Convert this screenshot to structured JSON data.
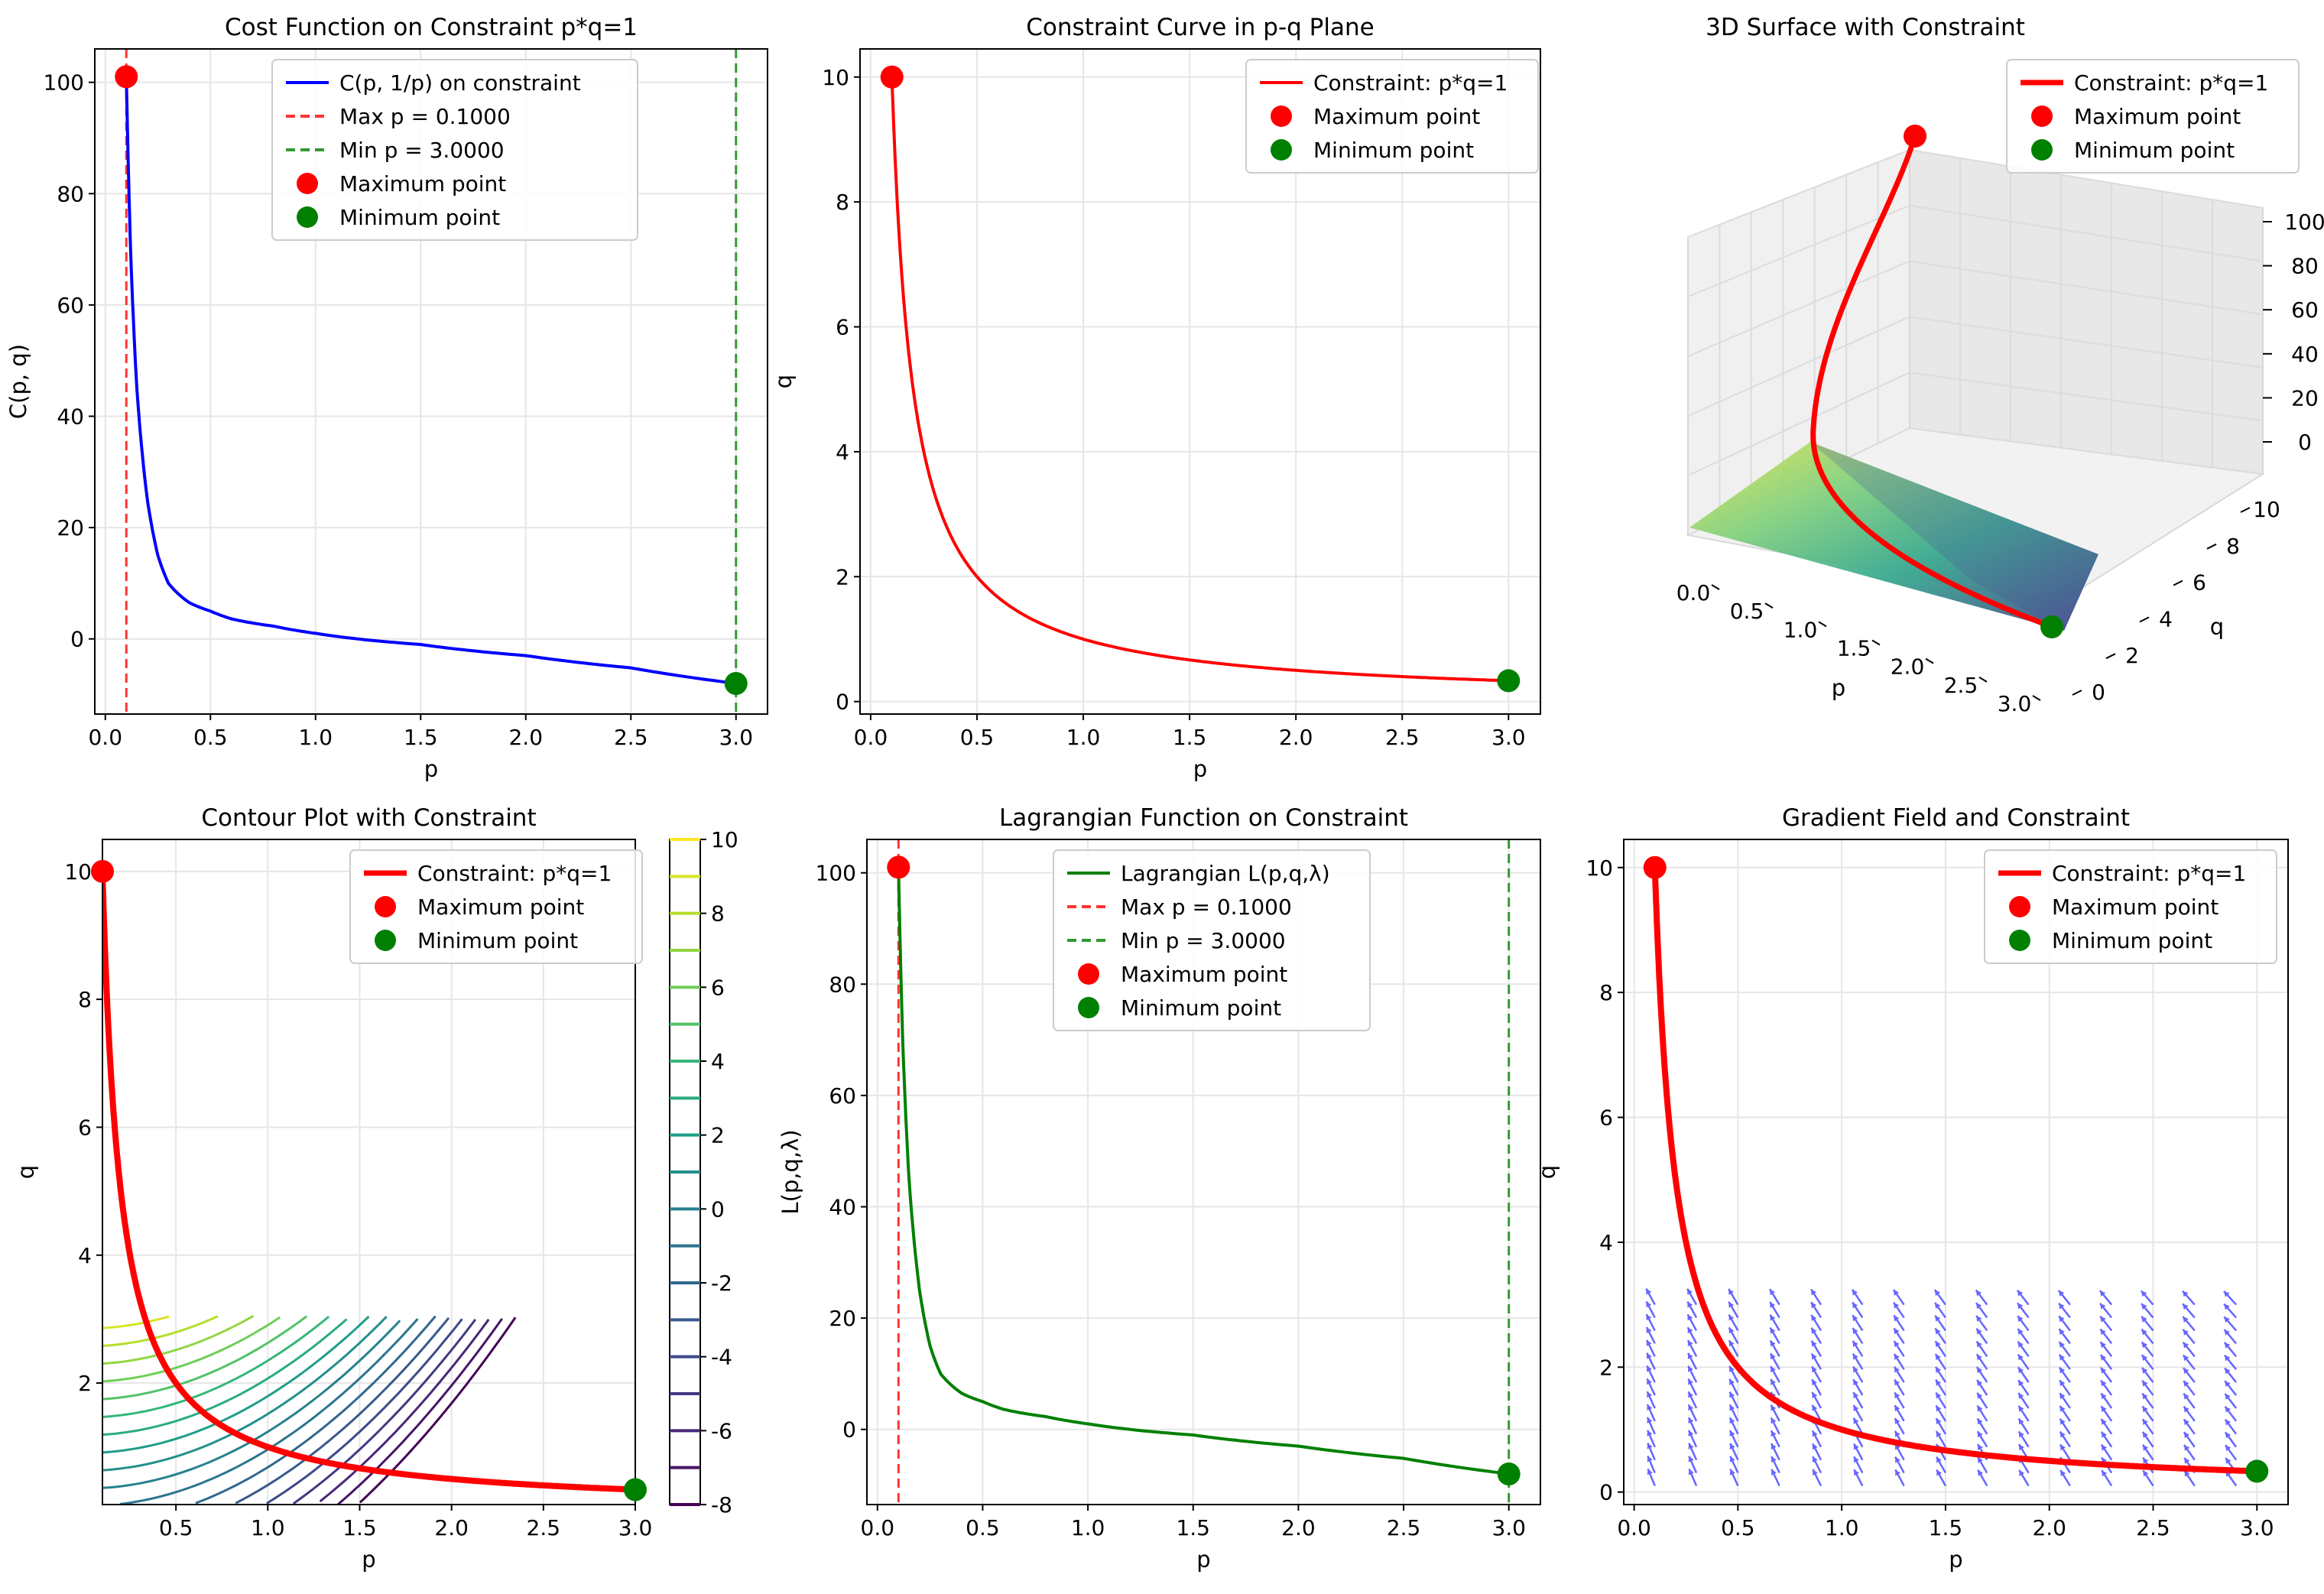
{
  "chart_data": [
    {
      "id": "p1",
      "type": "line",
      "title": "Cost Function on Constraint p*q=1",
      "xlabel": "p",
      "ylabel": "C(p, q)",
      "xlim": [
        -0.05,
        3.15
      ],
      "ylim": [
        -13.5,
        106
      ],
      "xticks": [
        0.0,
        0.5,
        1.0,
        1.5,
        2.0,
        2.5,
        3.0
      ],
      "xtick_labels": [
        "0.0",
        "0.5",
        "1.0",
        "1.5",
        "2.0",
        "2.5",
        "3.0"
      ],
      "yticks": [
        0,
        20,
        40,
        60,
        80,
        100
      ],
      "ytick_labels": [
        "0",
        "20",
        "40",
        "60",
        "80",
        "100"
      ],
      "grid": true,
      "curve": {
        "name": "C(p, 1/p) on constraint",
        "color": "#0000ff",
        "x": [
          0.1,
          0.12,
          0.15,
          0.2,
          0.25,
          0.3,
          0.4,
          0.5,
          0.6,
          0.8,
          1.0,
          1.5,
          2.0,
          2.5,
          3.0
        ],
        "y": [
          101,
          70,
          45,
          25,
          15,
          10,
          6.5,
          5,
          3.6,
          2.3,
          1.0,
          -1.0,
          -3.0,
          -5.2,
          -8.0
        ]
      },
      "vlines": [
        {
          "name": "Max p = 0.1000",
          "x": 0.1,
          "color": "#ff3333"
        },
        {
          "name": "Min p = 3.0000",
          "x": 3.0,
          "color": "#339933"
        }
      ],
      "points": [
        {
          "name": "Maximum point",
          "x": 0.1,
          "y": 101,
          "color": "#ff0000"
        },
        {
          "name": "Minimum point",
          "x": 3.0,
          "y": -8.0,
          "color": "#008000"
        }
      ],
      "legend": {
        "position": "top-right",
        "entries": [
          {
            "label": "C(p, 1/p) on constraint",
            "kind": "line",
            "color": "#0000ff"
          },
          {
            "label": "Max p = 0.1000",
            "kind": "dash",
            "color": "#ff3333"
          },
          {
            "label": "Min p = 3.0000",
            "kind": "dash",
            "color": "#339933"
          },
          {
            "label": "Maximum point",
            "kind": "dot",
            "color": "#ff0000"
          },
          {
            "label": "Minimum point",
            "kind": "dot",
            "color": "#008000"
          }
        ]
      }
    },
    {
      "id": "p2",
      "type": "line",
      "title": "Constraint Curve in p-q Plane",
      "xlabel": "p",
      "ylabel": "q",
      "xlim": [
        -0.05,
        3.15
      ],
      "ylim": [
        -0.2,
        10.45
      ],
      "xticks": [
        0.0,
        0.5,
        1.0,
        1.5,
        2.0,
        2.5,
        3.0
      ],
      "xtick_labels": [
        "0.0",
        "0.5",
        "1.0",
        "1.5",
        "2.0",
        "2.5",
        "3.0"
      ],
      "yticks": [
        0,
        2,
        4,
        6,
        8,
        10
      ],
      "ytick_labels": [
        "0",
        "2",
        "4",
        "6",
        "8",
        "10"
      ],
      "grid": true,
      "curve": {
        "name": "Constraint: p*q=1",
        "color": "#ff0000",
        "func": "hyperbola",
        "x_range": [
          0.1,
          3.0
        ]
      },
      "points": [
        {
          "name": "Maximum point",
          "x": 0.1,
          "y": 10,
          "color": "#ff0000"
        },
        {
          "name": "Minimum point",
          "x": 3.0,
          "y": 0.3333,
          "color": "#008000"
        }
      ],
      "legend": {
        "position": "top-right",
        "entries": [
          {
            "label": "Constraint: p*q=1",
            "kind": "line",
            "color": "#ff0000"
          },
          {
            "label": "Maximum point",
            "kind": "dot",
            "color": "#ff0000"
          },
          {
            "label": "Minimum point",
            "kind": "dot",
            "color": "#008000"
          }
        ]
      }
    },
    {
      "id": "p3",
      "type": "surface3d",
      "title": "3D Surface with Constraint",
      "xlabel": "p",
      "ylabel": "q",
      "xtick_labels": [
        "0.0",
        "0.5",
        "1.0",
        "1.5",
        "2.0",
        "2.5",
        "3.0"
      ],
      "ytick_labels": [
        "0",
        "2",
        "4",
        "6",
        "8",
        "10"
      ],
      "ztick_labels": [
        "0",
        "20",
        "40",
        "60",
        "80",
        "100"
      ],
      "curve": {
        "name": "Constraint: p*q=1",
        "color": "#ff0000"
      },
      "points": [
        {
          "name": "Maximum point",
          "x": 0.1,
          "y": 10,
          "z": 101,
          "color": "#ff0000"
        },
        {
          "name": "Minimum point",
          "x": 3.0,
          "y": 0.3333,
          "z": -8,
          "color": "#008000"
        }
      ],
      "legend": {
        "position": "top-right",
        "entries": [
          {
            "label": "Constraint: p*q=1",
            "kind": "thick",
            "color": "#ff0000"
          },
          {
            "label": "Maximum point",
            "kind": "dot",
            "color": "#ff0000"
          },
          {
            "label": "Minimum point",
            "kind": "dot",
            "color": "#008000"
          }
        ]
      }
    },
    {
      "id": "p4",
      "type": "contour",
      "title": "Contour Plot with Constraint",
      "xlabel": "p",
      "ylabel": "q",
      "xlim": [
        0.1,
        3.0
      ],
      "ylim": [
        0.1,
        10.5
      ],
      "xticks": [
        0.5,
        1.0,
        1.5,
        2.0,
        2.5,
        3.0
      ],
      "xtick_labels": [
        "0.5",
        "1.0",
        "1.5",
        "2.0",
        "2.5",
        "3.0"
      ],
      "yticks": [
        2,
        4,
        6,
        8,
        10
      ],
      "ytick_labels": [
        "2",
        "4",
        "6",
        "8",
        "10"
      ],
      "grid": true,
      "levels": [
        -8,
        -7,
        -6,
        -5,
        -4,
        -3,
        -2,
        -1,
        0,
        1,
        2,
        3,
        4,
        5,
        6,
        7,
        8,
        9,
        10
      ],
      "colorbar": {
        "ticks": [
          -8,
          -6,
          -4,
          -2,
          0,
          2,
          4,
          6,
          8,
          10
        ],
        "tick_labels": [
          "-8",
          "-6",
          "-4",
          "-2",
          "0",
          "2",
          "4",
          "6",
          "8",
          "10"
        ]
      },
      "curve": {
        "name": "Constraint: p*q=1",
        "color": "#ff0000",
        "func": "hyperbola",
        "x_range": [
          0.1,
          3.0
        ]
      },
      "points": [
        {
          "name": "Maximum point",
          "x": 0.1,
          "y": 10,
          "color": "#ff0000"
        },
        {
          "name": "Minimum point",
          "x": 3.0,
          "y": 0.3333,
          "color": "#008000"
        }
      ],
      "legend": {
        "position": "top-right",
        "entries": [
          {
            "label": "Constraint: p*q=1",
            "kind": "thick",
            "color": "#ff0000"
          },
          {
            "label": "Maximum point",
            "kind": "dot",
            "color": "#ff0000"
          },
          {
            "label": "Minimum point",
            "kind": "dot",
            "color": "#008000"
          }
        ]
      }
    },
    {
      "id": "p5",
      "type": "line",
      "title": "Lagrangian Function on Constraint",
      "xlabel": "p",
      "ylabel": "L(p,q,λ)",
      "xlim": [
        -0.05,
        3.15
      ],
      "ylim": [
        -13.5,
        106
      ],
      "xticks": [
        0.0,
        0.5,
        1.0,
        1.5,
        2.0,
        2.5,
        3.0
      ],
      "xtick_labels": [
        "0.0",
        "0.5",
        "1.0",
        "1.5",
        "2.0",
        "2.5",
        "3.0"
      ],
      "yticks": [
        0,
        20,
        40,
        60,
        80,
        100
      ],
      "ytick_labels": [
        "0",
        "20",
        "40",
        "60",
        "80",
        "100"
      ],
      "grid": true,
      "curve": {
        "name": "Lagrangian L(p,q,λ)",
        "color": "#008000",
        "x": [
          0.1,
          0.12,
          0.15,
          0.2,
          0.25,
          0.3,
          0.4,
          0.5,
          0.6,
          0.8,
          1.0,
          1.5,
          2.0,
          2.5,
          3.0
        ],
        "y": [
          101,
          70,
          45,
          25,
          15,
          10,
          6.5,
          5,
          3.6,
          2.3,
          1.0,
          -1.0,
          -3.0,
          -5.2,
          -8.0
        ]
      },
      "vlines": [
        {
          "name": "Max p = 0.1000",
          "x": 0.1,
          "color": "#ff3333"
        },
        {
          "name": "Min p = 3.0000",
          "x": 3.0,
          "color": "#339933"
        }
      ],
      "points": [
        {
          "name": "Maximum point",
          "x": 0.1,
          "y": 101,
          "color": "#ff0000"
        },
        {
          "name": "Minimum point",
          "x": 3.0,
          "y": -8.0,
          "color": "#008000"
        }
      ],
      "legend": {
        "position": "top-center",
        "entries": [
          {
            "label": "Lagrangian L(p,q,λ)",
            "kind": "line",
            "color": "#008000"
          },
          {
            "label": "Max p = 0.1000",
            "kind": "dash",
            "color": "#ff3333"
          },
          {
            "label": "Min p = 3.0000",
            "kind": "dash",
            "color": "#339933"
          },
          {
            "label": "Maximum point",
            "kind": "dot",
            "color": "#ff0000"
          },
          {
            "label": "Minimum point",
            "kind": "dot",
            "color": "#008000"
          }
        ]
      }
    },
    {
      "id": "p6",
      "type": "quiver",
      "title": "Gradient Field and Constraint",
      "xlabel": "p",
      "ylabel": "q",
      "xlim": [
        -0.05,
        3.15
      ],
      "ylim": [
        -0.2,
        10.45
      ],
      "xticks": [
        0.0,
        0.5,
        1.0,
        1.5,
        2.0,
        2.5,
        3.0
      ],
      "xtick_labels": [
        "0.0",
        "0.5",
        "1.0",
        "1.5",
        "2.0",
        "2.5",
        "3.0"
      ],
      "yticks": [
        0,
        2,
        4,
        6,
        8,
        10
      ],
      "ytick_labels": [
        "0",
        "2",
        "4",
        "6",
        "8",
        "10"
      ],
      "grid": true,
      "arrow_color": "#6666ff",
      "arrow_grid": {
        "p_range": [
          0.1,
          2.9
        ],
        "q_range": [
          0.1,
          3.0
        ],
        "cols": 15,
        "rows": 15
      },
      "curve": {
        "name": "Constraint: p*q=1",
        "color": "#ff0000",
        "func": "hyperbola",
        "x_range": [
          0.1,
          3.0
        ]
      },
      "points": [
        {
          "name": "Maximum point",
          "x": 0.1,
          "y": 10,
          "color": "#ff0000"
        },
        {
          "name": "Minimum point",
          "x": 3.0,
          "y": 0.3333,
          "color": "#008000"
        }
      ],
      "legend": {
        "position": "top-right",
        "entries": [
          {
            "label": "Constraint: p*q=1",
            "kind": "thick",
            "color": "#ff0000"
          },
          {
            "label": "Maximum point",
            "kind": "dot",
            "color": "#ff0000"
          },
          {
            "label": "Minimum point",
            "kind": "dot",
            "color": "#008000"
          }
        ]
      }
    }
  ]
}
